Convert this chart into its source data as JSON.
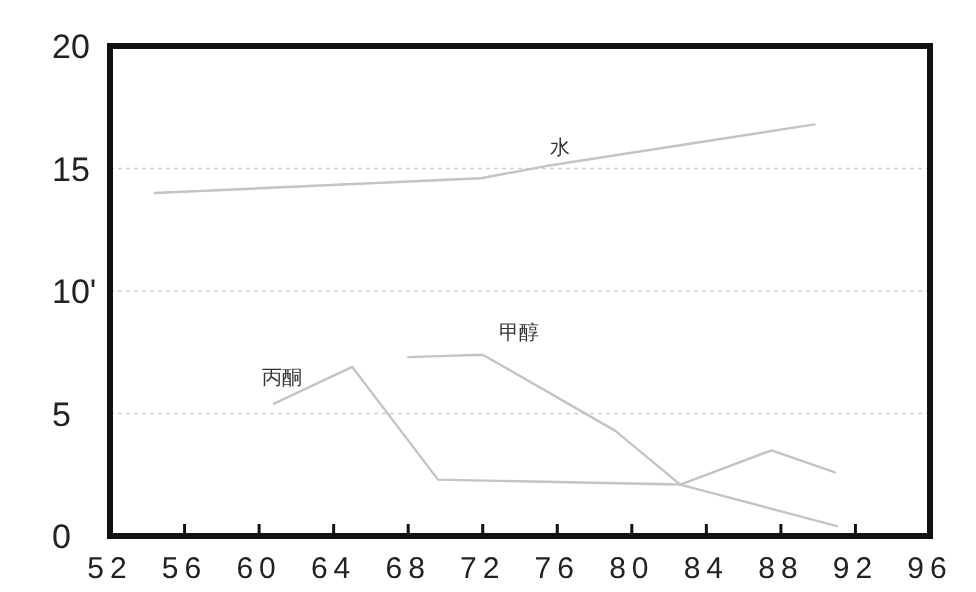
{
  "chart_data": {
    "type": "line",
    "xlim": [
      52,
      96
    ],
    "ylim": [
      0,
      20
    ],
    "xticks": [
      52,
      56,
      60,
      64,
      68,
      72,
      76,
      80,
      84,
      88,
      92,
      96
    ],
    "yticks": [
      0,
      5,
      {
        "value": 10,
        "label": "10'"
      },
      15,
      20
    ],
    "grid": "y",
    "line_style": "solid",
    "marker": "none",
    "series": [
      {
        "name": "水",
        "color": "#c4c4c4",
        "x": [
          54.4,
          71.9,
          75.4,
          89.8
        ],
        "values": [
          14.0,
          14.6,
          15.1,
          16.8
        ]
      },
      {
        "name": "丙酮",
        "color": "#c4c4c4",
        "x": [
          60.8,
          65.0,
          69.6,
          82.6,
          87.5,
          90.9
        ],
        "values": [
          5.4,
          6.9,
          2.3,
          2.1,
          3.5,
          2.6
        ]
      },
      {
        "name": "甲醇",
        "color": "#c4c4c4",
        "x": [
          68.0,
          72.0,
          79.1,
          82.6,
          91.0
        ],
        "values": [
          7.3,
          7.4,
          4.3,
          2.1,
          0.4
        ]
      }
    ]
  }
}
